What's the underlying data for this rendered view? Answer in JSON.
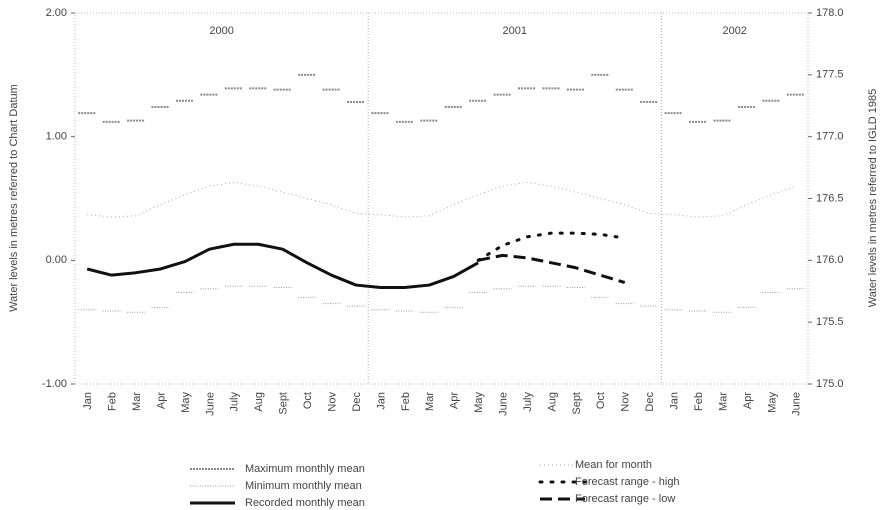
{
  "chart_data": {
    "type": "line",
    "y_label": "Water levels in metres referred to Chart Datum",
    "y2_label": "Water levels in metres referred to IGLD 1985",
    "years": [
      "2000",
      "2001",
      "2002"
    ],
    "categories": [
      "Jan",
      "Feb",
      "Mar",
      "Apr",
      "May",
      "June",
      "July",
      "Aug",
      "Sept",
      "Oct",
      "Nov",
      "Dec",
      "Jan",
      "Feb",
      "Mar",
      "Apr",
      "May",
      "June",
      "July",
      "Aug",
      "Sept",
      "Oct",
      "Nov",
      "Dec",
      "Jan",
      "Feb",
      "Mar",
      "Apr",
      "May",
      "June"
    ],
    "ylim": [
      -1.0,
      2.0
    ],
    "yticks": [
      {
        "value": -1,
        "label": "-1.00"
      },
      {
        "value": 0,
        "label": "0.00"
      },
      {
        "value": 1,
        "label": "1.00"
      },
      {
        "value": 2,
        "label": "2.00"
      }
    ],
    "y2lim": [
      175.0,
      178.0
    ],
    "y2ticks": [
      {
        "value": 175,
        "label": "175.0"
      },
      175.5,
      {
        "value": 176,
        "label": "176.0"
      },
      176.5,
      {
        "value": 177,
        "label": "177.0"
      },
      177.5,
      {
        "value": 178,
        "label": "178.0"
      }
    ],
    "series": [
      {
        "name": "Maximum monthly mean",
        "color": "#8a8a8a",
        "style": "dash-marker",
        "values": [
          1.19,
          1.12,
          1.13,
          1.24,
          1.29,
          1.34,
          1.39,
          1.39,
          1.38,
          1.5,
          1.38,
          1.28,
          1.19,
          1.12,
          1.13,
          1.24,
          1.29,
          1.34,
          1.39,
          1.39,
          1.38,
          1.5,
          1.38,
          1.28,
          1.19,
          1.12,
          1.13,
          1.24,
          1.29,
          1.34
        ]
      },
      {
        "name": "Minimum monthly mean",
        "color": "#9a9a9a",
        "style": "dot-marker",
        "values": [
          -0.4,
          -0.41,
          -0.42,
          -0.38,
          -0.26,
          -0.23,
          -0.21,
          -0.21,
          -0.22,
          -0.3,
          -0.35,
          -0.37,
          -0.4,
          -0.41,
          -0.42,
          -0.38,
          -0.26,
          -0.23,
          -0.21,
          -0.21,
          -0.22,
          -0.3,
          -0.35,
          -0.37,
          -0.4,
          -0.41,
          -0.42,
          -0.38,
          -0.26,
          -0.23
        ]
      },
      {
        "name": "Recorded monthly mean",
        "color": "#111111",
        "style": "solid",
        "values": [
          -0.07,
          -0.12,
          -0.1,
          -0.07,
          -0.01,
          0.09,
          0.13,
          0.13,
          0.09,
          -0.02,
          -0.12,
          -0.2,
          -0.22,
          -0.22,
          -0.2,
          -0.13,
          -0.02,
          null,
          null,
          null,
          null,
          null,
          null,
          null,
          null,
          null,
          null,
          null,
          null,
          null
        ]
      },
      {
        "name": "Mean for month",
        "color": "#aaaaaa",
        "style": "dotted",
        "values": [
          0.37,
          0.35,
          0.36,
          0.45,
          0.53,
          0.6,
          0.63,
          0.6,
          0.55,
          0.5,
          0.45,
          0.38,
          0.37,
          0.35,
          0.36,
          0.45,
          0.53,
          0.6,
          0.63,
          0.6,
          0.55,
          0.5,
          0.45,
          0.38,
          0.37,
          0.35,
          0.36,
          0.45,
          0.53,
          0.6
        ]
      },
      {
        "name": "Forecast range - high",
        "color": "#111111",
        "style": "dots",
        "values": [
          null,
          null,
          null,
          null,
          null,
          null,
          null,
          null,
          null,
          null,
          null,
          null,
          null,
          null,
          null,
          null,
          0.0,
          0.12,
          0.19,
          0.22,
          0.22,
          0.21,
          0.18,
          null,
          null,
          null,
          null,
          null,
          null,
          null
        ]
      },
      {
        "name": "Forecast range - low",
        "color": "#111111",
        "style": "dashed",
        "values": [
          null,
          null,
          null,
          null,
          null,
          null,
          null,
          null,
          null,
          null,
          null,
          null,
          null,
          null,
          null,
          null,
          0.0,
          0.04,
          0.02,
          -0.02,
          -0.06,
          -0.12,
          -0.18,
          null,
          null,
          null,
          null,
          null,
          null,
          null
        ]
      }
    ]
  }
}
